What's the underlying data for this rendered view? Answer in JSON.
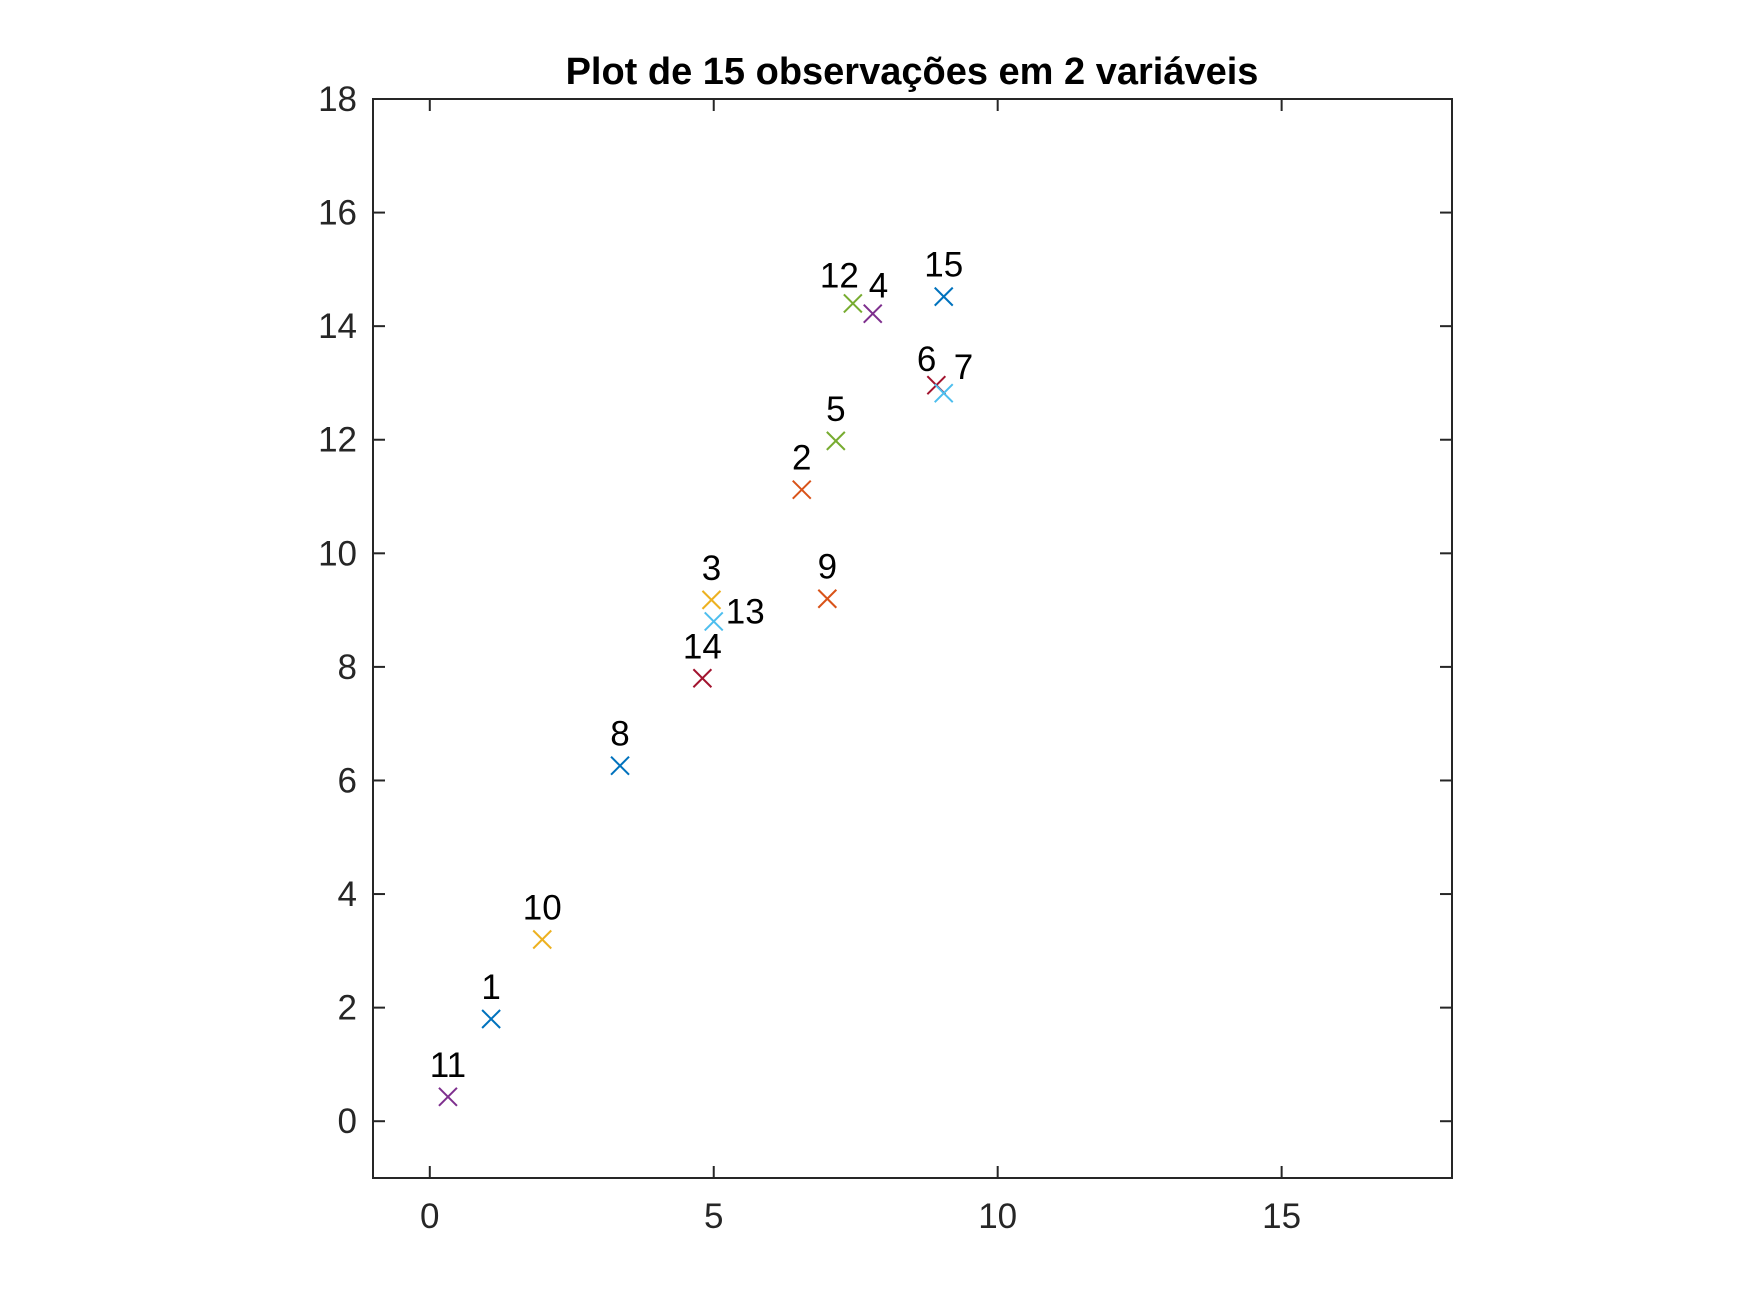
{
  "chart_data": {
    "type": "scatter",
    "title": "Plot de 15 observações em 2 variáveis",
    "xlabel": "",
    "ylabel": "",
    "xlim": [
      -1,
      18
    ],
    "ylim": [
      -1,
      18
    ],
    "x_ticks": [
      0,
      5,
      10,
      15
    ],
    "x_tick_labels": [
      "0",
      "5",
      "10",
      "15"
    ],
    "y_ticks": [
      0,
      2,
      4,
      6,
      8,
      10,
      12,
      14,
      16,
      18
    ],
    "y_tick_labels": [
      "0",
      "2",
      "4",
      "6",
      "8",
      "10",
      "12",
      "14",
      "16",
      "18"
    ],
    "grid": false,
    "marker": "x",
    "points": [
      {
        "label": "1",
        "x": 1.08,
        "y": 1.8,
        "color": "#0072BD"
      },
      {
        "label": "2",
        "x": 6.55,
        "y": 11.12,
        "color": "#D95319"
      },
      {
        "label": "3",
        "x": 4.96,
        "y": 9.18,
        "color": "#EDB120"
      },
      {
        "label": "4",
        "x": 7.8,
        "y": 14.22,
        "color": "#7E2F8E"
      },
      {
        "label": "5",
        "x": 7.15,
        "y": 11.98,
        "color": "#77AC30"
      },
      {
        "label": "6",
        "x": 8.92,
        "y": 12.96,
        "color": "#A2142F"
      },
      {
        "label": "7",
        "x": 9.05,
        "y": 12.82,
        "color": "#4DBEEE"
      },
      {
        "label": "8",
        "x": 3.35,
        "y": 6.26,
        "color": "#0072BD"
      },
      {
        "label": "9",
        "x": 7.0,
        "y": 9.2,
        "color": "#D95319"
      },
      {
        "label": "10",
        "x": 1.98,
        "y": 3.2,
        "color": "#EDB120"
      },
      {
        "label": "11",
        "x": 0.32,
        "y": 0.43,
        "color": "#7E2F8E"
      },
      {
        "label": "12",
        "x": 7.45,
        "y": 14.4,
        "color": "#77AC30"
      },
      {
        "label": "13",
        "x": 5.0,
        "y": 8.8,
        "color": "#4DBEEE"
      },
      {
        "label": "14",
        "x": 4.8,
        "y": 7.8,
        "color": "#A2142F"
      },
      {
        "label": "15",
        "x": 9.05,
        "y": 14.52,
        "color": "#0072BD"
      }
    ]
  }
}
